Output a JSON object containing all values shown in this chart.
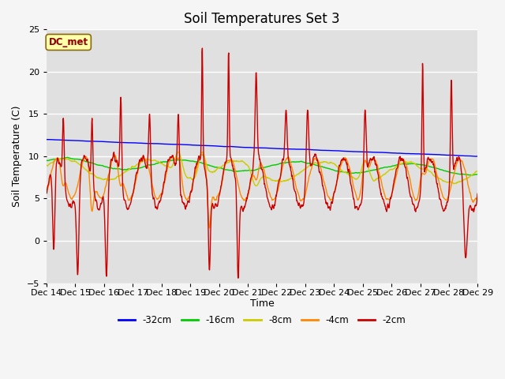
{
  "title": "Soil Temperatures Set 3",
  "xlabel": "Time",
  "ylabel": "Soil Temperature (C)",
  "xlim": [
    0,
    360
  ],
  "ylim": [
    -5,
    25
  ],
  "yticks": [
    -5,
    0,
    5,
    10,
    15,
    20,
    25
  ],
  "xtick_positions": [
    0,
    24,
    48,
    72,
    96,
    120,
    144,
    168,
    192,
    216,
    240,
    264,
    288,
    312,
    336,
    360
  ],
  "xtick_labels": [
    "Dec 14",
    "Dec 15",
    "Dec 16",
    "Dec 17",
    "Dec 18",
    "Dec 19",
    "Dec 20",
    "Dec 21",
    "Dec 22",
    "Dec 23",
    "Dec 24",
    "Dec 25",
    "Dec 26",
    "Dec 27",
    "Dec 28",
    "Dec 29"
  ],
  "label_box_text": "DC_met",
  "legend_labels": [
    "-32cm",
    "-16cm",
    "-8cm",
    "-4cm",
    "-2cm"
  ],
  "legend_colors": [
    "#0000ff",
    "#00cc00",
    "#cccc00",
    "#ff8800",
    "#cc0000"
  ],
  "fig_bg": "#f5f5f5",
  "plot_bg": "#e0e0e0",
  "grid_color": "#ffffff",
  "title_fontsize": 12,
  "axis_fontsize": 9,
  "tick_fontsize": 8
}
